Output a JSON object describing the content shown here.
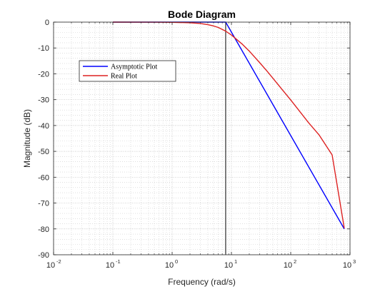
{
  "chart_data": {
    "type": "line",
    "title": "Bode Diagram",
    "xlabel": "Frequency (rad/s)",
    "ylabel": "Magnitude (dB)",
    "xscale": "log",
    "xlim": [
      0.01,
      1000
    ],
    "ylim": [
      -90,
      0
    ],
    "xticks": [
      {
        "value": 0.01,
        "base": "10",
        "exp": "-2"
      },
      {
        "value": 0.1,
        "base": "10",
        "exp": "-1"
      },
      {
        "value": 1,
        "base": "10",
        "exp": "0"
      },
      {
        "value": 10,
        "base": "10",
        "exp": "1"
      },
      {
        "value": 100,
        "base": "10",
        "exp": "2"
      },
      {
        "value": 1000,
        "base": "10",
        "exp": "3"
      }
    ],
    "yticks": [
      0,
      -10,
      -20,
      -30,
      -40,
      -50,
      -60,
      -70,
      -80,
      -90
    ],
    "grid": true,
    "legend_position": "upper-left",
    "vertical_line": {
      "x": 8,
      "color": "#000000"
    },
    "series": [
      {
        "name": "Asymptotic Plot",
        "color": "#0000ff",
        "points": [
          [
            0.1,
            0
          ],
          [
            8,
            0
          ],
          [
            800,
            -80
          ]
        ]
      },
      {
        "name": "Real Plot",
        "color": "#dd2222",
        "points": [
          [
            0.1,
            0
          ],
          [
            0.5,
            -0.02
          ],
          [
            1,
            -0.07
          ],
          [
            2,
            -0.26
          ],
          [
            3,
            -0.54
          ],
          [
            4,
            -0.97
          ],
          [
            5,
            -1.48
          ],
          [
            6,
            -2.07
          ],
          [
            8,
            -3.5
          ],
          [
            10,
            -4.99
          ],
          [
            15,
            -8.4
          ],
          [
            20,
            -11.2
          ],
          [
            30,
            -15.7
          ],
          [
            40,
            -19.0
          ],
          [
            50,
            -21.7
          ],
          [
            70,
            -25.8
          ],
          [
            100,
            -30.1
          ],
          [
            200,
            -38.9
          ],
          [
            300,
            -43.6
          ],
          [
            500,
            -51.4
          ],
          [
            800,
            -79.7
          ]
        ]
      }
    ]
  }
}
